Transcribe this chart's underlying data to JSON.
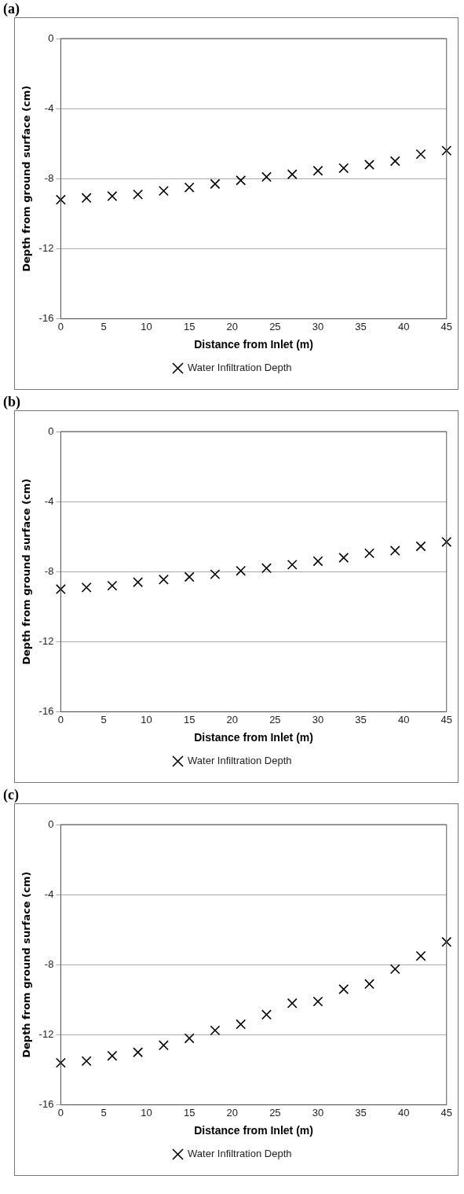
{
  "chart_data": [
    {
      "type": "scatter",
      "title": "(a)",
      "xlabel": "Distance from Inlet (m)",
      "ylabel": "Depth from ground surface (cm)",
      "x": [
        0,
        3,
        6,
        9,
        12,
        15,
        18,
        21,
        24,
        27,
        30,
        33,
        36,
        39,
        42,
        45
      ],
      "series": [
        {
          "name": "Water Infiltration Depth",
          "color": "#000000",
          "values": [
            -9.2,
            -9.1,
            -9.0,
            -8.9,
            -8.7,
            -8.5,
            -8.3,
            -8.1,
            -7.9,
            -7.75,
            -7.55,
            -7.4,
            -7.2,
            -7.0,
            -6.6,
            -6.4
          ]
        }
      ],
      "xlim": [
        0,
        45
      ],
      "xticks": [
        0,
        5,
        10,
        15,
        20,
        25,
        30,
        35,
        40,
        45
      ],
      "ylim": [
        -16,
        0
      ],
      "yticks": [
        -16,
        -12,
        -8,
        -4,
        0
      ],
      "grid": "y",
      "legend": "bottom",
      "marker": "cross"
    },
    {
      "type": "scatter",
      "title": "(b)",
      "xlabel": "Distance from Inlet (m)",
      "ylabel": "Depth from ground surface (cm)",
      "x": [
        0,
        3,
        6,
        9,
        12,
        15,
        18,
        21,
        24,
        27,
        30,
        33,
        36,
        39,
        42,
        45
      ],
      "series": [
        {
          "name": "Water Infiltration Depth",
          "color": "#000000",
          "values": [
            -9.0,
            -8.9,
            -8.8,
            -8.6,
            -8.45,
            -8.3,
            -8.15,
            -7.95,
            -7.8,
            -7.6,
            -7.4,
            -7.2,
            -6.95,
            -6.8,
            -6.55,
            -6.3
          ]
        }
      ],
      "xlim": [
        0,
        45
      ],
      "xticks": [
        0,
        5,
        10,
        15,
        20,
        25,
        30,
        35,
        40,
        45
      ],
      "ylim": [
        -16,
        0
      ],
      "yticks": [
        -16,
        -12,
        -8,
        -4,
        0
      ],
      "grid": "y",
      "legend": "bottom",
      "marker": "cross"
    },
    {
      "type": "scatter",
      "title": "(c)",
      "xlabel": "Distance from Inlet (m)",
      "ylabel": "Depth from ground surface (cm)",
      "x": [
        0,
        3,
        6,
        9,
        12,
        15,
        18,
        21,
        24,
        27,
        30,
        33,
        36,
        39,
        42,
        45
      ],
      "series": [
        {
          "name": "Water Infiltration Depth",
          "color": "#000000",
          "values": [
            -13.6,
            -13.5,
            -13.2,
            -13.0,
            -12.6,
            -12.2,
            -11.75,
            -11.4,
            -10.85,
            -10.2,
            -10.1,
            -9.4,
            -9.1,
            -8.25,
            -7.5,
            -6.7
          ]
        }
      ],
      "xlim": [
        0,
        45
      ],
      "xticks": [
        0,
        5,
        10,
        15,
        20,
        25,
        30,
        35,
        40,
        45
      ],
      "ylim": [
        -16,
        0
      ],
      "yticks": [
        -16,
        -12,
        -8,
        -4,
        0
      ],
      "grid": "y",
      "legend": "bottom",
      "marker": "cross"
    }
  ]
}
